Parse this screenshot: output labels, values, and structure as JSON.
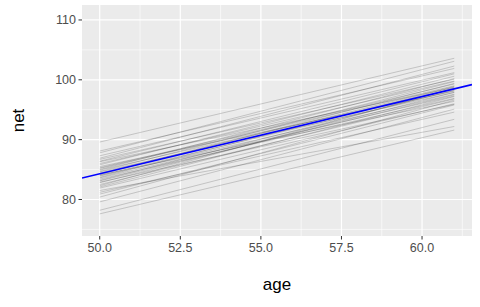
{
  "chart_data": {
    "type": "line",
    "x_label": "age",
    "y_label": "net",
    "x": [
      50,
      61
    ],
    "xlim": [
      49.45,
      61.55
    ],
    "xticks": [
      {
        "value": 50,
        "label": "50.0"
      },
      52.5,
      {
        "value": 55,
        "label": "55.0"
      },
      57.5,
      {
        "value": 60,
        "label": "60.0"
      }
    ],
    "ylim": [
      73.9,
      112.5
    ],
    "yticks": [
      80,
      90,
      100,
      110
    ],
    "grid": true,
    "series": [
      {
        "color": "#000000",
        "values": [
          84.0,
          98.2
        ]
      },
      {
        "color": "#000000",
        "values": [
          83.1,
          97.5
        ]
      },
      {
        "color": "#000000",
        "values": [
          85.2,
          99.0
        ]
      },
      {
        "color": "#000000",
        "values": [
          82.5,
          96.8
        ]
      },
      {
        "color": "#000000",
        "values": [
          86.0,
          99.8
        ]
      },
      {
        "color": "#000000",
        "values": [
          84.6,
          97.9
        ]
      },
      {
        "color": "#000000",
        "values": [
          83.7,
          98.8
        ]
      },
      {
        "color": "#000000",
        "values": [
          81.9,
          96.0
        ]
      },
      {
        "color": "#000000",
        "values": [
          85.8,
          100.6
        ]
      },
      {
        "color": "#000000",
        "values": [
          84.9,
          98.5
        ]
      },
      {
        "color": "#000000",
        "values": [
          82.8,
          97.9
        ]
      },
      {
        "color": "#000000",
        "values": [
          86.7,
          100.1
        ]
      },
      {
        "color": "#000000",
        "values": [
          83.4,
          96.9
        ]
      },
      {
        "color": "#000000",
        "values": [
          80.9,
          95.8
        ]
      },
      {
        "color": "#000000",
        "values": [
          87.3,
          101.2
        ]
      },
      {
        "color": "#000000",
        "values": [
          84.2,
          99.4
        ]
      },
      {
        "color": "#000000",
        "values": [
          85.5,
          98.1
        ]
      },
      {
        "color": "#000000",
        "values": [
          82.1,
          97.2
        ]
      },
      {
        "color": "#000000",
        "values": [
          83.9,
          97.6
        ]
      },
      {
        "color": "#000000",
        "values": [
          88.1,
          101.9
        ]
      },
      {
        "color": "#000000",
        "values": [
          79.6,
          95.1
        ]
      },
      {
        "color": "#000000",
        "values": [
          84.4,
          98.9
        ]
      },
      {
        "color": "#000000",
        "values": [
          86.3,
          98.7
        ]
      },
      {
        "color": "#000000",
        "values": [
          81.2,
          94.6
        ]
      },
      {
        "color": "#000000",
        "values": [
          85.0,
          100.2
        ]
      },
      {
        "color": "#000000",
        "values": [
          83.2,
          98.3
        ]
      },
      {
        "color": "#000000",
        "values": [
          87.8,
          103.1
        ]
      },
      {
        "color": "#000000",
        "values": [
          82.9,
          95.9
        ]
      },
      {
        "color": "#000000",
        "values": [
          84.7,
          99.7
        ]
      },
      {
        "color": "#000000",
        "values": [
          78.2,
          93.4
        ]
      },
      {
        "color": "#000000",
        "values": [
          86.9,
          102.3
        ]
      },
      {
        "color": "#000000",
        "values": [
          83.6,
          97.3
        ]
      },
      {
        "color": "#000000",
        "values": [
          85.3,
          99.3
        ]
      },
      {
        "color": "#000000",
        "values": [
          80.4,
          96.6
        ]
      },
      {
        "color": "#000000",
        "values": [
          89.6,
          103.6
        ]
      },
      {
        "color": "#000000",
        "values": [
          84.1,
          96.4
        ]
      },
      {
        "color": "#000000",
        "values": [
          82.3,
          98.6
        ]
      },
      {
        "color": "#000000",
        "values": [
          86.4,
          101.0
        ]
      },
      {
        "color": "#000000",
        "values": [
          81.5,
          92.2
        ]
      },
      {
        "color": "#000000",
        "values": [
          77.6,
          91.6
        ]
      },
      {
        "color": "#0000ff",
        "x": [
          49.45,
          61.55
        ],
        "values": [
          83.6,
          99.2
        ]
      }
    ]
  }
}
